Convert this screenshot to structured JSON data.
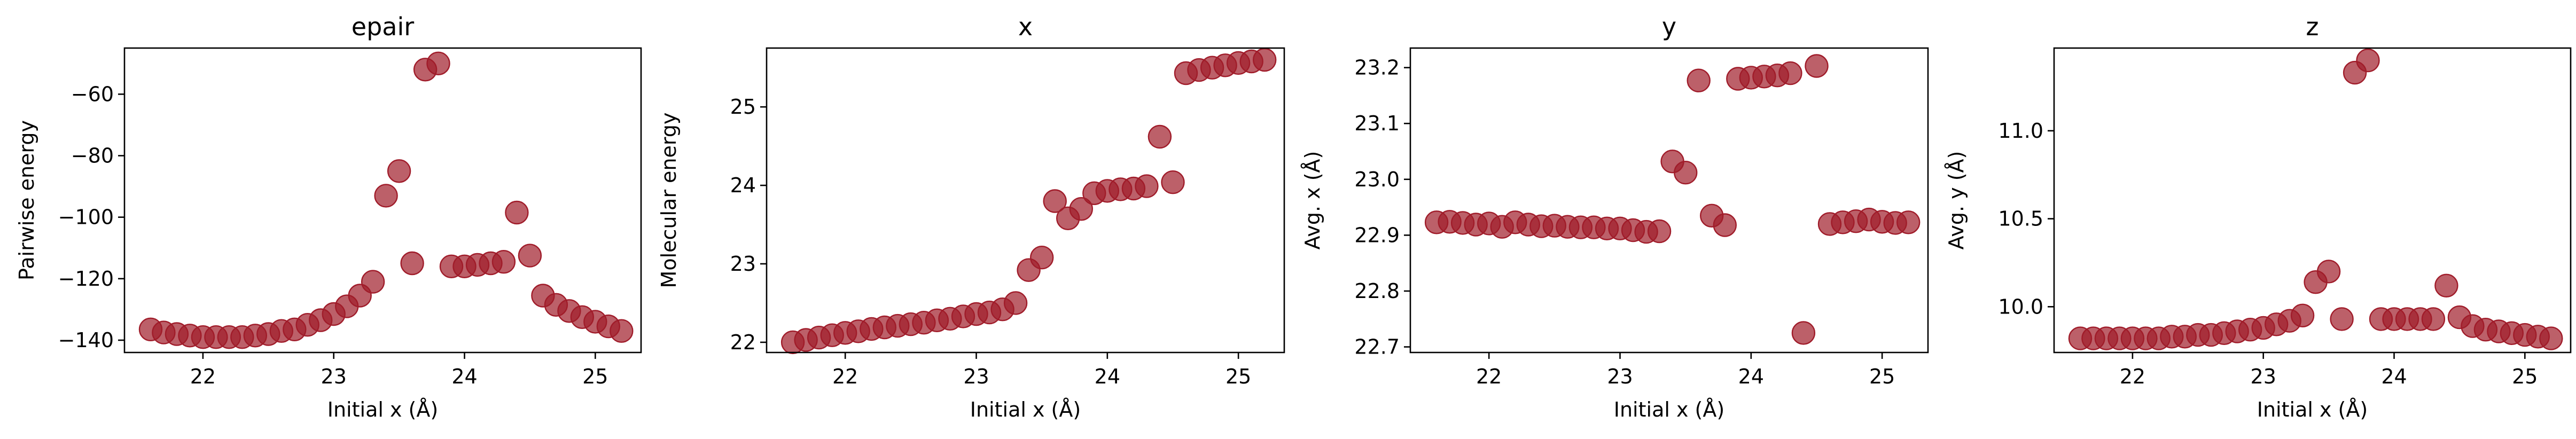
{
  "colors": {
    "marker": "#a01c2a",
    "marker_fill_opacity": 0.7,
    "axes": "#000000",
    "background": "#ffffff"
  },
  "chart_data": [
    {
      "type": "scatter",
      "title": "epair",
      "xlabel": "Initial x (Å)",
      "ylabel": "Pairwise energy",
      "xlim": [
        21.4,
        25.35
      ],
      "ylim": [
        -144,
        -45
      ],
      "xticks": [
        22,
        23,
        24,
        25
      ],
      "yticks": [
        -140,
        -120,
        -100,
        -80,
        -60
      ],
      "grid": false,
      "x": [
        21.6,
        21.7,
        21.8,
        21.9,
        22.0,
        22.1,
        22.2,
        22.3,
        22.4,
        22.5,
        22.6,
        22.7,
        22.8,
        22.9,
        23.0,
        23.1,
        23.2,
        23.3,
        23.4,
        23.5,
        23.6,
        23.7,
        23.8,
        23.9,
        24.0,
        24.1,
        24.2,
        24.3,
        24.4,
        24.5,
        24.6,
        24.7,
        24.8,
        24.9,
        25.0,
        25.1,
        25.2
      ],
      "y": [
        -136.5,
        -137.5,
        -138,
        -138.5,
        -139,
        -139,
        -139,
        -139,
        -138.5,
        -138,
        -137,
        -136.5,
        -135,
        -133.5,
        -131.5,
        -129,
        -125.5,
        -121,
        -93,
        -85,
        -115,
        -52,
        -50,
        -116,
        -116,
        -115.5,
        -115,
        -114.5,
        -98.5,
        -112.5,
        -125.5,
        -128.5,
        -130.5,
        -132.5,
        -134,
        -135.5,
        -137
      ]
    },
    {
      "type": "scatter",
      "title": "x",
      "xlabel": "Initial x (Å)",
      "ylabel": "Molecular energy",
      "xlim": [
        21.4,
        25.35
      ],
      "ylim": [
        21.87,
        25.75
      ],
      "xticks": [
        22,
        23,
        24,
        25
      ],
      "yticks": [
        22,
        23,
        24,
        25
      ],
      "grid": false,
      "x": [
        21.6,
        21.7,
        21.8,
        21.9,
        22.0,
        22.1,
        22.2,
        22.3,
        22.4,
        22.5,
        22.6,
        22.7,
        22.8,
        22.9,
        23.0,
        23.1,
        23.2,
        23.3,
        23.4,
        23.5,
        23.6,
        23.7,
        23.8,
        23.9,
        24.0,
        24.1,
        24.2,
        24.3,
        24.4,
        24.5,
        24.6,
        24.7,
        24.8,
        24.9,
        25.0,
        25.1,
        25.2
      ],
      "y": [
        22.0,
        22.03,
        22.06,
        22.09,
        22.12,
        22.14,
        22.17,
        22.19,
        22.21,
        22.23,
        22.25,
        22.28,
        22.3,
        22.33,
        22.36,
        22.38,
        22.42,
        22.5,
        22.92,
        23.08,
        23.8,
        23.58,
        23.7,
        23.9,
        23.93,
        23.95,
        23.96,
        23.99,
        24.62,
        24.04,
        25.43,
        25.47,
        25.5,
        25.53,
        25.56,
        25.58,
        25.6
      ]
    },
    {
      "type": "scatter",
      "title": "y",
      "xlabel": "Initial x (Å)",
      "ylabel": "Avg. x (Å)",
      "xlim": [
        21.4,
        25.35
      ],
      "ylim": [
        22.69,
        23.235
      ],
      "xticks": [
        22,
        23,
        24,
        25
      ],
      "yticks": [
        22.7,
        22.8,
        22.9,
        23.0,
        23.1,
        23.2
      ],
      "grid": false,
      "x": [
        21.6,
        21.7,
        21.8,
        21.9,
        22.0,
        22.1,
        22.2,
        22.3,
        22.4,
        22.5,
        22.6,
        22.7,
        22.8,
        22.9,
        23.0,
        23.1,
        23.2,
        23.3,
        23.4,
        23.5,
        23.6,
        23.7,
        23.8,
        23.9,
        24.0,
        24.1,
        24.2,
        24.3,
        24.4,
        24.5,
        24.6,
        24.7,
        24.8,
        24.9,
        25.0,
        25.1,
        25.2
      ],
      "y": [
        22.923,
        22.924,
        22.922,
        22.919,
        22.921,
        22.915,
        22.923,
        22.919,
        22.916,
        22.917,
        22.915,
        22.914,
        22.914,
        22.912,
        22.912,
        22.909,
        22.906,
        22.907,
        23.032,
        23.012,
        23.177,
        22.935,
        22.918,
        23.18,
        23.182,
        23.184,
        23.186,
        23.19,
        22.725,
        23.203,
        22.92,
        22.923,
        22.925,
        22.928,
        22.924,
        22.922,
        22.923
      ]
    },
    {
      "type": "scatter",
      "title": "z",
      "xlabel": "Initial x (Å)",
      "ylabel": "Avg. y (Å)",
      "xlim": [
        21.4,
        25.35
      ],
      "ylim": [
        9.74,
        11.47
      ],
      "xticks": [
        22,
        23,
        24,
        25
      ],
      "yticks": [
        10.0,
        10.5,
        11.0
      ],
      "grid": false,
      "x": [
        21.6,
        21.7,
        21.8,
        21.9,
        22.0,
        22.1,
        22.2,
        22.3,
        22.4,
        22.5,
        22.6,
        22.7,
        22.8,
        22.9,
        23.0,
        23.1,
        23.2,
        23.3,
        23.4,
        23.5,
        23.6,
        23.7,
        23.8,
        23.9,
        24.0,
        24.1,
        24.2,
        24.3,
        24.4,
        24.5,
        24.6,
        24.7,
        24.8,
        24.9,
        25.0,
        25.1,
        25.2
      ],
      "y": [
        9.82,
        9.82,
        9.82,
        9.82,
        9.82,
        9.82,
        9.82,
        9.83,
        9.83,
        9.84,
        9.84,
        9.85,
        9.86,
        9.87,
        9.88,
        9.9,
        9.92,
        9.95,
        10.14,
        10.2,
        9.93,
        11.33,
        11.4,
        9.93,
        9.93,
        9.93,
        9.93,
        9.93,
        10.12,
        9.94,
        9.89,
        9.87,
        9.86,
        9.85,
        9.84,
        9.83,
        9.82
      ]
    }
  ]
}
